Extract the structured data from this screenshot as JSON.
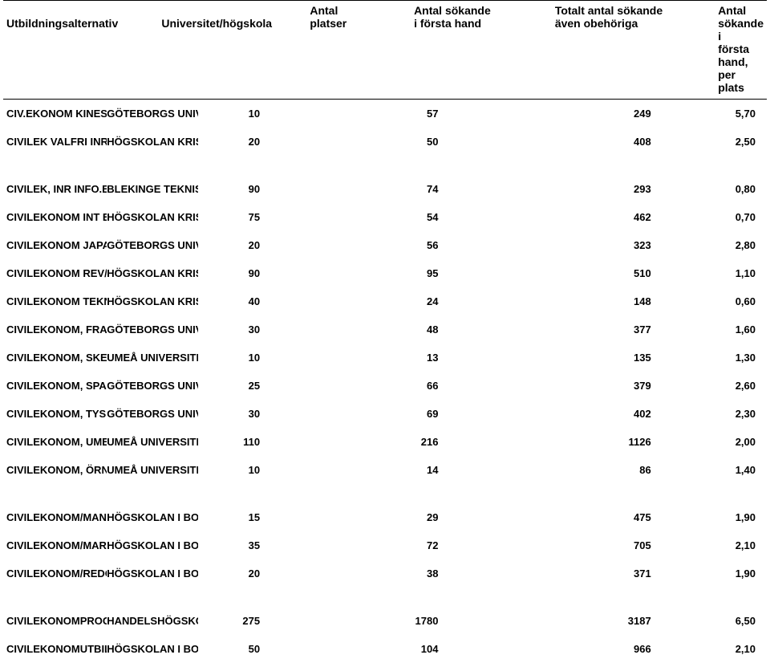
{
  "header": {
    "col1": "Utbildningsalternativ",
    "col2": "Universitet/högskola",
    "col3a": "Antal",
    "col3b": "platser",
    "col4a": "Antal sökande",
    "col4b": "i första hand",
    "col5a": "Totalt antal sökande",
    "col5b": "även obehöriga",
    "col6a": "Antal sökande i",
    "col6b": "första hand, per plats"
  },
  "rows": [
    {
      "c1": "CIV.EKONOM KINESISKA",
      "c2": "GÖTEBORGS UNIVERSITET",
      "c3": "10",
      "c4": "57",
      "c5": "249",
      "c6": "5,70",
      "gap": false
    },
    {
      "c1": "CIVILEK VALFRI INR",
      "c2": "HÖGSKOLAN KRISTIANSTAD",
      "c3": "20",
      "c4": "50",
      "c5": "408",
      "c6": "2,50",
      "gap": true
    },
    {
      "c1": "CIVILEK, INR INFO.EK",
      "c2": "BLEKINGE TEKNISKA HÖGSK",
      "c3": "90",
      "c4": "74",
      "c5": "293",
      "c6": "0,80",
      "gap": false
    },
    {
      "c1": "CIVILEKONOM INT EK",
      "c2": "HÖGSKOLAN KRISTIANSTAD",
      "c3": "75",
      "c4": "54",
      "c5": "462",
      "c6": "0,70",
      "gap": false
    },
    {
      "c1": "CIVILEKONOM JAPANSKA",
      "c2": "GÖTEBORGS UNIVERSITET",
      "c3": "20",
      "c4": "56",
      "c5": "323",
      "c6": "2,80",
      "gap": false
    },
    {
      "c1": "CIVILEKONOM REV/CON",
      "c2": "HÖGSKOLAN KRISTIANSTAD",
      "c3": "90",
      "c4": "95",
      "c5": "510",
      "c6": "1,10",
      "gap": false
    },
    {
      "c1": "CIVILEKONOM TEKNIK",
      "c2": "HÖGSKOLAN KRISTIANSTAD",
      "c3": "40",
      "c4": "24",
      "c5": "148",
      "c6": "0,60",
      "gap": false
    },
    {
      "c1": "CIVILEKONOM, FRANSKA",
      "c2": "GÖTEBORGS UNIVERSITET",
      "c3": "30",
      "c4": "48",
      "c5": "377",
      "c6": "1,60",
      "gap": false
    },
    {
      "c1": "CIVILEKONOM, SKE/UME",
      "c2": "UMEÅ UNIVERSITET",
      "c3": "10",
      "c4": "13",
      "c5": "135",
      "c6": "1,30",
      "gap": false
    },
    {
      "c1": "CIVILEKONOM, SPANSKA",
      "c2": "GÖTEBORGS UNIVERSITET",
      "c3": "25",
      "c4": "66",
      "c5": "379",
      "c6": "2,60",
      "gap": false
    },
    {
      "c1": "CIVILEKONOM, TYSKA",
      "c2": "GÖTEBORGS UNIVERSITET",
      "c3": "30",
      "c4": "69",
      "c5": "402",
      "c6": "2,30",
      "gap": false
    },
    {
      "c1": "CIVILEKONOM, UMEÅ",
      "c2": "UMEÅ UNIVERSITET",
      "c3": "110",
      "c4": "216",
      "c5": "1126",
      "c6": "2,00",
      "gap": false
    },
    {
      "c1": "CIVILEKONOM, ÖRN/UME",
      "c2": "UMEÅ UNIVERSITET",
      "c3": "10",
      "c4": "14",
      "c5": "86",
      "c6": "1,40",
      "gap": true
    },
    {
      "c1": "CIVILEKONOM/MAN.MENT",
      "c2": "HÖGSKOLAN I BORÅS",
      "c3": "15",
      "c4": "29",
      "c5": "475",
      "c6": "1,90",
      "gap": false
    },
    {
      "c1": "CIVILEKONOM/MARK.FÖR",
      "c2": "HÖGSKOLAN I BORÅS",
      "c3": "35",
      "c4": "72",
      "c5": "705",
      "c6": "2,10",
      "gap": false
    },
    {
      "c1": "CIVILEKONOM/REDOVISN",
      "c2": "HÖGSKOLAN I BORÅS",
      "c3": "20",
      "c4": "38",
      "c5": "371",
      "c6": "1,90",
      "gap": true
    },
    {
      "c1": "CIVILEKONOMPROGRAM",
      "c2": "HANDELSHÖGSKOLAN I STO",
      "c3": "275",
      "c4": "1780",
      "c5": "3187",
      "c6": "6,50",
      "gap": false
    },
    {
      "c1": "CIVILEKONOMUTBILDN",
      "c2": "HÖGSKOLAN I BORÅS",
      "c3": "50",
      "c4": "104",
      "c5": "966",
      "c6": "2,10",
      "gap": false
    }
  ]
}
